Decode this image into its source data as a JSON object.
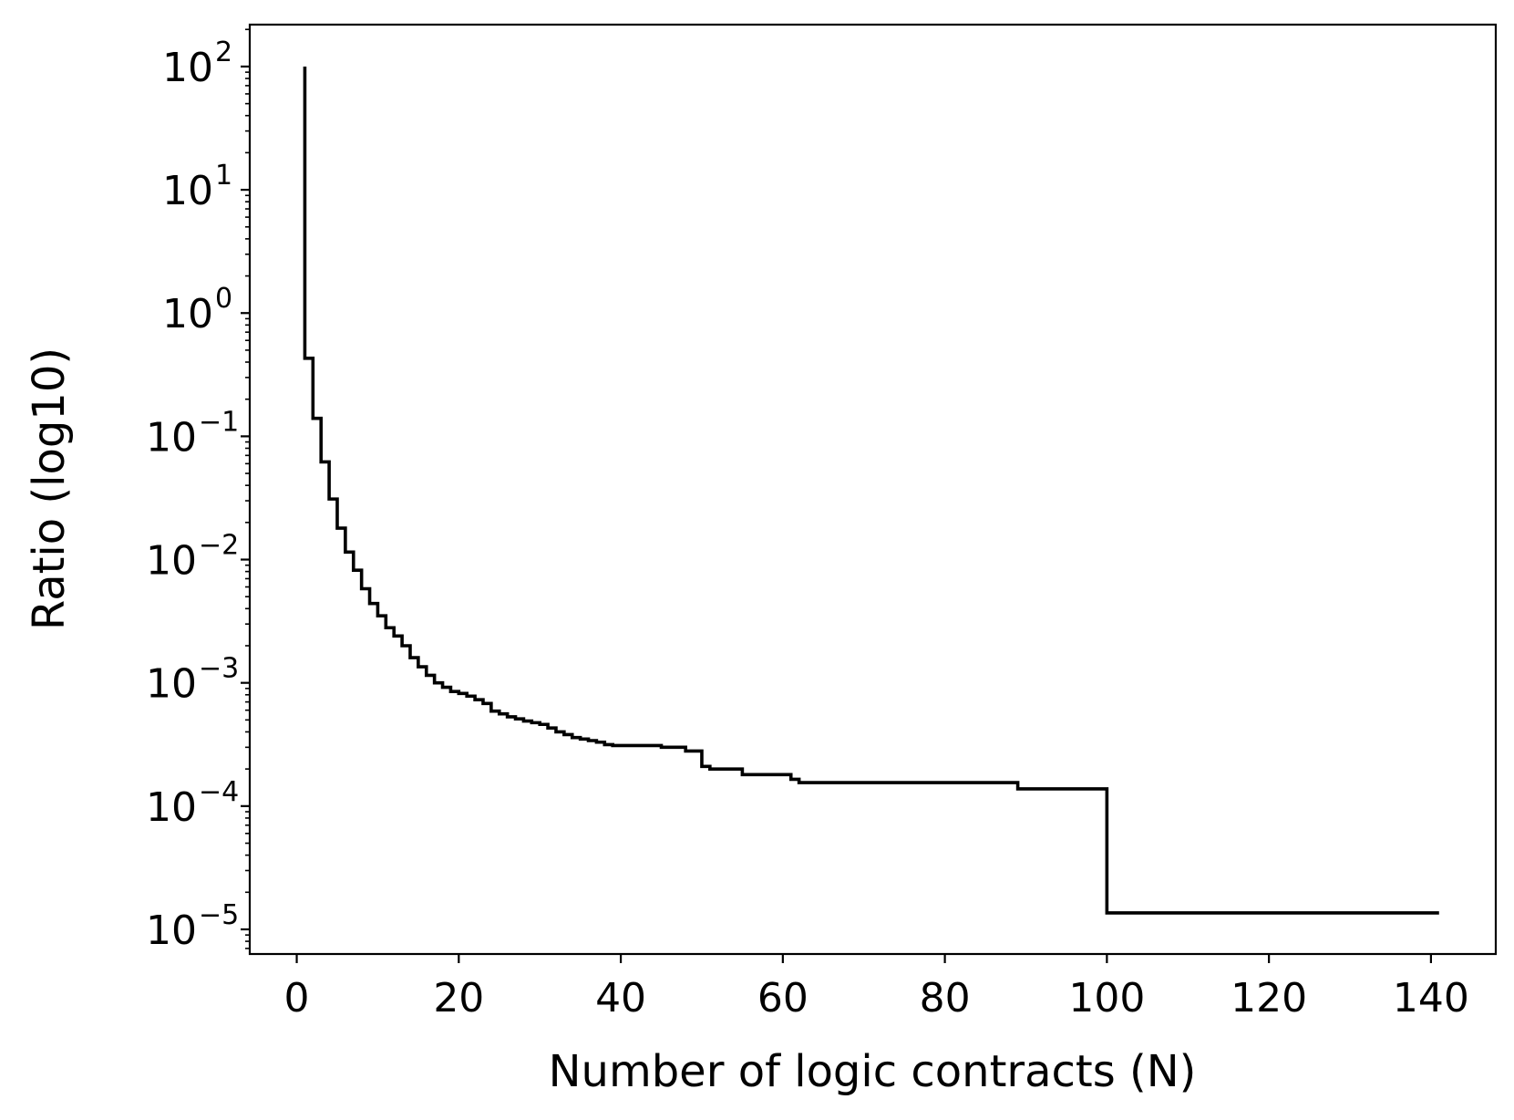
{
  "chart_data": {
    "type": "line",
    "title": "",
    "xlabel": "Number of logic contracts (N)",
    "ylabel": "Ratio (log10)",
    "xlim": [
      -5.8,
      148
    ],
    "ylim_log10": [
      -5.2,
      2.34
    ],
    "yscale": "log",
    "grid": false,
    "line_color": "#000000",
    "x_ticks": [
      0,
      20,
      40,
      60,
      80,
      100,
      120,
      140
    ],
    "y_ticks": [
      {
        "base": "10",
        "exp": "2",
        "value": 100
      },
      {
        "base": "10",
        "exp": "1",
        "value": 10
      },
      {
        "base": "10",
        "exp": "0",
        "value": 1
      },
      {
        "base": "10",
        "exp": "−1",
        "value": 0.1
      },
      {
        "base": "10",
        "exp": "−2",
        "value": 0.01
      },
      {
        "base": "10",
        "exp": "−3",
        "value": 0.001
      },
      {
        "base": "10",
        "exp": "−4",
        "value": 0.0001
      },
      {
        "base": "10",
        "exp": "−5",
        "value": 1e-05
      }
    ],
    "series": [
      {
        "x": [
          1,
          2,
          3,
          4,
          5,
          6,
          7,
          8,
          9,
          10,
          11,
          12,
          13,
          14,
          15,
          16,
          17,
          18,
          19,
          20,
          21,
          22,
          23,
          24,
          25,
          26,
          27,
          28,
          29,
          30,
          31,
          32,
          33,
          34,
          35,
          36,
          37,
          38,
          39,
          45,
          48,
          50,
          51,
          55,
          60,
          61,
          62,
          89,
          100,
          100,
          141
        ],
        "y": [
          100,
          0.43,
          0.14,
          0.062,
          0.031,
          0.018,
          0.0115,
          0.0082,
          0.0058,
          0.0044,
          0.0035,
          0.0028,
          0.0024,
          0.002,
          0.0016,
          0.00135,
          0.00115,
          0.001,
          0.00092,
          0.00085,
          0.00082,
          0.00078,
          0.00073,
          0.00068,
          0.00059,
          0.00056,
          0.00053,
          0.00051,
          0.00049,
          0.000475,
          0.00046,
          0.00043,
          0.0004,
          0.00038,
          0.00036,
          0.00035,
          0.00034,
          0.00033,
          0.000315,
          0.00031,
          0.0003,
          0.00028,
          0.00021,
          0.0002,
          0.00018,
          0.00018,
          0.000165,
          0.000155,
          0.000138,
          2.7e-05,
          1.36e-05
        ]
      }
    ]
  }
}
